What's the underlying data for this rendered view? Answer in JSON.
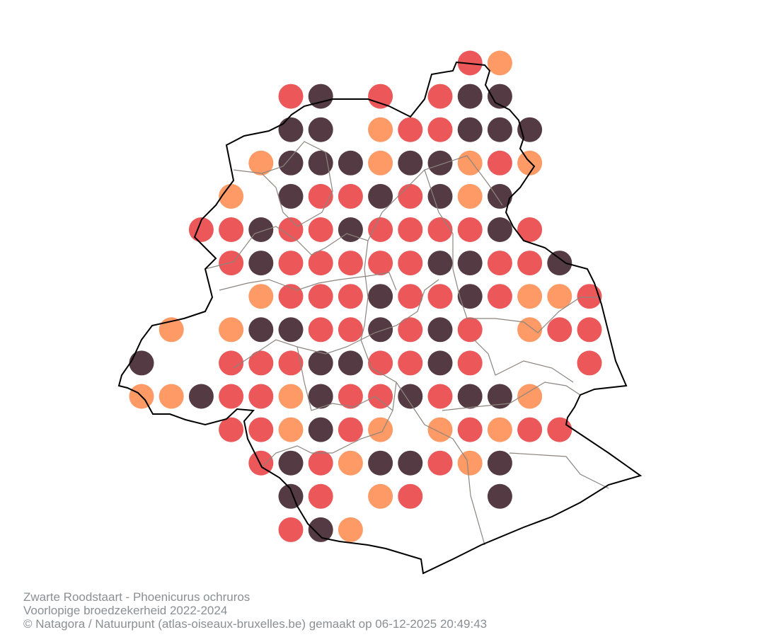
{
  "map": {
    "colors": {
      "probable": "#ec5759",
      "confirmed": "#543a42",
      "possible": "#fd9a66",
      "boundary": "#000000",
      "municipality_lines": "#8c857e"
    },
    "legend_codes": {
      "R": "probable",
      "D": "confirmed",
      "O": "possible"
    },
    "grid_rows": [
      "...........RO...",
      ".....RD.R.RDD...",
      ".....DD.ORRDDD..",
      "....ODDDODDORO..",
      "...O.DRRDRDOD...",
      "..RRDRRDRRRRDR..",
      "...RDRRRRRDDRRD.",
      "....ORRRDRRDROOR",
      ".O.ODDRRDRDR.ORR",
      "D..RRRDDRRDR...R",
      "OODRRODRRDRDDO..",
      "...RRODRO.ORORR.",
      "....RDRODDROD...",
      ".....DR.OR..D...",
      ".....RDO........"
    ]
  },
  "caption": {
    "species": "Zwarte Roodstaart - Phoenicurus ochruros",
    "subtitle": "Voorlopige broedzekerheid 2022-2024",
    "credits": "© Natagora / Natuurpunt (atlas-oiseaux-bruxelles.be) gemaakt op 06-12-2025 20:49:43"
  }
}
